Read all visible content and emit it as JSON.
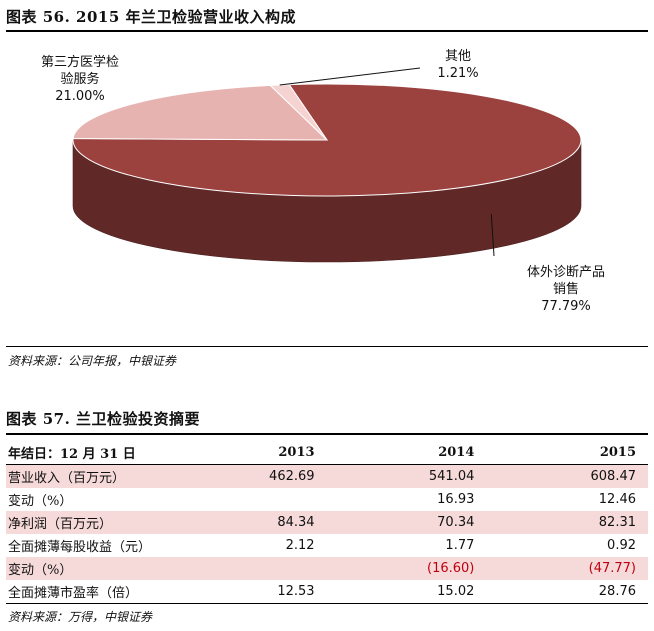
{
  "figure56": {
    "title": "图表 56. 2015 年兰卫检验营业收入构成",
    "source": "资料来源：公司年报，中银证券"
  },
  "chart_data": {
    "type": "pie",
    "style": "3d",
    "slices": [
      {
        "label_lines": [
          "体外诊断产品",
          "销售"
        ],
        "value": 77.79,
        "value_label": "77.79%",
        "color": "#9b423f"
      },
      {
        "label_lines": [
          "第三方医学检",
          "验服务"
        ],
        "value": 21.0,
        "value_label": "21.00%",
        "color": "#e7b3b1"
      },
      {
        "label_lines": [
          "其他"
        ],
        "value": 1.21,
        "value_label": "1.21%",
        "color": "#f5d3d0"
      }
    ]
  },
  "figure57": {
    "title": "图表 57. 兰卫检验投资摘要",
    "source": "资料来源：万得，中银证券",
    "header": [
      "年结日：12 月 31 日",
      "2013",
      "2014",
      "2015"
    ],
    "rows": [
      {
        "label": "营业收入（百万元）",
        "values": [
          "462.69",
          "541.04",
          "608.47"
        ],
        "shaded": true,
        "negative": false
      },
      {
        "label": "变动（%）",
        "values": [
          "",
          "16.93",
          "12.46"
        ],
        "shaded": false,
        "negative": false
      },
      {
        "label": "净利润（百万元）",
        "values": [
          "84.34",
          "70.34",
          "82.31"
        ],
        "shaded": true,
        "negative": false
      },
      {
        "label": "全面摊薄每股收益（元）",
        "values": [
          "2.12",
          "1.77",
          "0.92"
        ],
        "shaded": false,
        "negative": false
      },
      {
        "label": "变动（%）",
        "values": [
          "",
          "(16.60)",
          "(47.77)"
        ],
        "shaded": true,
        "negative": true
      },
      {
        "label": "全面摊薄市盈率（倍）",
        "values": [
          "12.53",
          "15.02",
          "28.76"
        ],
        "shaded": false,
        "negative": false
      }
    ]
  }
}
